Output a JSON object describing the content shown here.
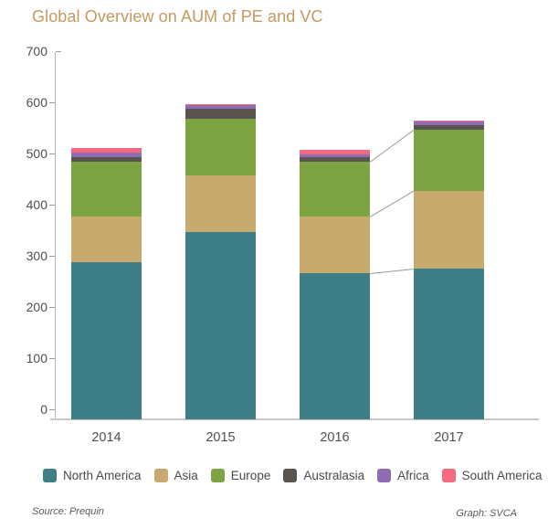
{
  "title": "Global Overview on AUM of PE and VC",
  "title_color": "#C49A62",
  "footer": {
    "source": "Source: Prequin",
    "credit": "Graph: SVCA"
  },
  "colors": {
    "axis_line": "#b5b5b5",
    "baseline": "#c9c9c9",
    "connector": "#999999",
    "tick_text": "#4f4f4f"
  },
  "chart_data": {
    "type": "bar",
    "stacked": true,
    "title": "Global Overview on AUM of PE and VC",
    "xlabel": "",
    "ylabel": "",
    "categories": [
      "2014",
      "2015",
      "2016",
      "2017"
    ],
    "series": [
      {
        "name": "North America",
        "color": "#3D7E87",
        "values": [
          287,
          347,
          266,
          275
        ]
      },
      {
        "name": "Asia",
        "color": "#C8A96E",
        "values": [
          89,
          110,
          110,
          152
        ]
      },
      {
        "name": "Europe",
        "color": "#7DA342",
        "values": [
          108,
          110,
          108,
          120
        ]
      },
      {
        "name": "Australasia",
        "color": "#595450",
        "values": [
          9,
          20,
          8,
          8
        ]
      },
      {
        "name": "Africa",
        "color": "#8E6DB3",
        "values": [
          9,
          8,
          7,
          8
        ]
      },
      {
        "name": "South America",
        "color": "#F6697E",
        "values": [
          9,
          2,
          9,
          2
        ]
      }
    ],
    "totals": [
      511,
      597,
      508,
      565
    ],
    "ylim": [
      0,
      700
    ],
    "yticks": [
      0,
      100,
      200,
      300,
      400,
      500,
      600,
      700
    ],
    "grid": false,
    "legend_position": "bottom",
    "connectors": {
      "from_category": "2016",
      "to_category": "2017",
      "at_cumulative_series": [
        "North America",
        "Asia",
        "Europe"
      ]
    }
  }
}
